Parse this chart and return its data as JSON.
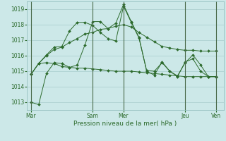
{
  "background_color": "#cce8e8",
  "grid_color": "#a8cccc",
  "line_color": "#2d6b2d",
  "marker_color": "#2d6b2d",
  "xlabel": "Pression niveau de la mer( hPa )",
  "ylim": [
    1012.5,
    1019.5
  ],
  "yticks": [
    1013,
    1014,
    1015,
    1016,
    1017,
    1018,
    1019
  ],
  "xtick_labels": [
    "Mar",
    "Sam",
    "Mer",
    "Jeu",
    "Ven"
  ],
  "xtick_positions": [
    0,
    8,
    12,
    20,
    24
  ],
  "day_lines": [
    0,
    8,
    12,
    20,
    24
  ],
  "series": [
    [
      1013.0,
      1012.85,
      1014.85,
      1015.55,
      1015.5,
      1015.25,
      1015.4,
      1016.7,
      1018.2,
      1018.2,
      1017.75,
      1018.1,
      1019.3,
      1018.2,
      1017.2,
      1015.0,
      1014.75,
      1015.6,
      1015.0,
      1014.7,
      1015.55,
      1016.05,
      1015.4,
      1014.65,
      1014.65
    ],
    [
      1014.8,
      1015.5,
      1015.55,
      1015.5,
      1015.3,
      1015.25,
      1015.2,
      1015.2,
      1015.15,
      1015.1,
      1015.05,
      1015.0,
      1015.0,
      1015.0,
      1014.95,
      1014.9,
      1014.85,
      1014.8,
      1014.75,
      1014.7,
      1014.65,
      1014.65,
      1014.65,
      1014.65,
      1014.65
    ],
    [
      1014.8,
      1015.5,
      1016.0,
      1016.4,
      1016.55,
      1016.85,
      1017.1,
      1017.4,
      1017.5,
      1017.7,
      1017.75,
      1017.9,
      1018.0,
      1017.85,
      1017.5,
      1017.2,
      1016.9,
      1016.6,
      1016.5,
      1016.4,
      1016.35,
      1016.35,
      1016.3,
      1016.3,
      1016.3
    ],
    [
      1014.8,
      1015.5,
      1016.05,
      1016.55,
      1016.6,
      1017.6,
      1018.15,
      1018.15,
      1017.95,
      1017.5,
      1017.1,
      1016.95,
      1019.2,
      1018.15,
      1017.15,
      1015.05,
      1015.0,
      1015.55,
      1015.0,
      1014.65,
      1015.6,
      1015.8,
      1015.0,
      1014.65,
      1014.65
    ]
  ]
}
